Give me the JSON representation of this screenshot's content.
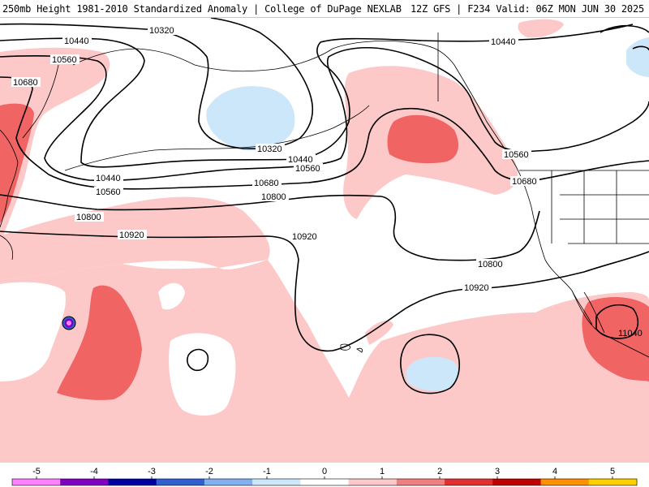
{
  "header": {
    "left_title": "250mb Height 1981-2010 Standardized Anomaly | College of DuPage NEXLAB",
    "right_title": "12Z GFS | F234 Valid: 06Z MON JUN 30 2025"
  },
  "map": {
    "contour_labels": [
      "10320",
      "10440",
      "10560",
      "10680",
      "10800",
      "10920",
      "11040"
    ],
    "colors": {
      "pos1": "#fcc8c8",
      "pos2": "#f06464",
      "pos3": "#dc2828",
      "neg1": "#cce6fa",
      "neg2": "#96c8f0",
      "neg5": "#e060e0",
      "contour": "#000000",
      "coast": "#000000"
    }
  },
  "legend": {
    "ticks": [
      "-5",
      "-4",
      "-3",
      "-2",
      "-1",
      "0",
      "1",
      "2",
      "3",
      "4",
      "5"
    ],
    "colors": [
      "#ff80ff",
      "#8000c0",
      "#0000a0",
      "#3060d0",
      "#80b0f0",
      "#cce6fa",
      "#ffffff",
      "#fcc8c8",
      "#f08080",
      "#e03030",
      "#c00000",
      "#ff9000",
      "#ffd000"
    ]
  }
}
